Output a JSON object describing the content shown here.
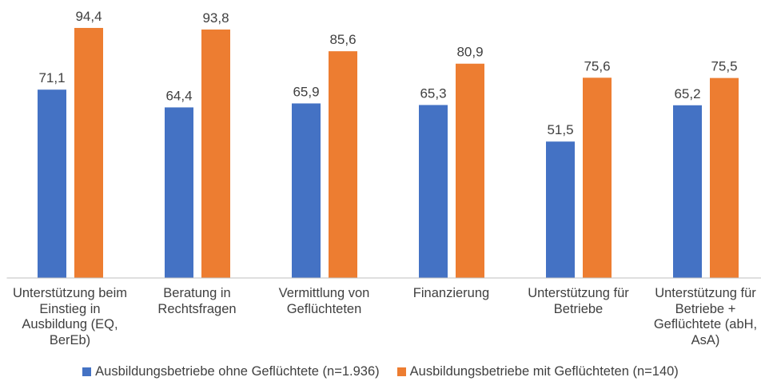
{
  "chart_data": {
    "type": "bar",
    "categories": [
      "Unterstützung beim Einstieg in Ausbildung (EQ, BerEb)",
      "Beratung in Rechtsfragen",
      "Vermittlung von Geflüchteten",
      "Finanzierung",
      "Unterstützung für Betriebe",
      "Unterstützung für Betriebe + Geflüchtete (abH, AsA)"
    ],
    "series": [
      {
        "name": "Ausbildungsbetriebe ohne Geflüchtete (n=1.936)",
        "color": "#4472c4",
        "values": [
          71.1,
          64.4,
          65.9,
          65.3,
          51.5,
          65.2
        ],
        "value_labels": [
          "71,1",
          "64,4",
          "65,9",
          "65,3",
          "51,5",
          "65,2"
        ]
      },
      {
        "name": "Ausbildungsbetriebe mit Geflüchteten (n=140)",
        "color": "#ed7d31",
        "values": [
          94.4,
          93.8,
          85.6,
          80.9,
          75.6,
          75.5
        ],
        "value_labels": [
          "94,4",
          "93,8",
          "85,6",
          "80,9",
          "75,6",
          "75,5"
        ]
      }
    ],
    "ylim": [
      0,
      100
    ],
    "legend": "bottom"
  }
}
